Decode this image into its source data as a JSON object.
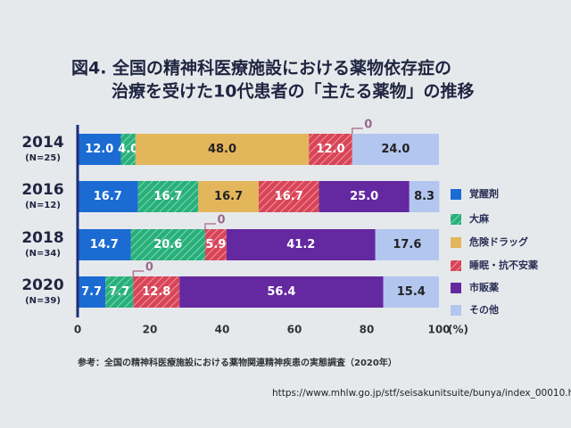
{
  "chart_data": {
    "type": "stacked-barh",
    "title": [
      "図4. 全国の精神科医療施設における薬物依存症の",
      "治療を受けた10代患者の「主たる薬物」の推移"
    ],
    "categories": [
      "2014",
      "2016",
      "2018",
      "2020"
    ],
    "category_notes": [
      "(N=25)",
      "(N=12)",
      "(N=34)",
      "(N=39)"
    ],
    "series": [
      {
        "name": "覚醒剤",
        "color": "#1b6bd3",
        "hatched": false,
        "values": [
          12.0,
          16.7,
          14.7,
          7.7
        ],
        "value_labels": [
          "12.0",
          "16.7",
          "14.7",
          "7.7"
        ]
      },
      {
        "name": "大麻",
        "color": "#27b07a",
        "hatched": true,
        "values": [
          4.0,
          16.7,
          20.6,
          7.7
        ],
        "value_labels": [
          "4.0",
          "16.7",
          "20.6",
          "7.7"
        ]
      },
      {
        "name": "危険ドラッグ",
        "color": "#e4b65c",
        "hatched": false,
        "values": [
          48.0,
          16.7,
          0,
          0
        ],
        "value_labels": [
          "48.0",
          "16.7",
          "0",
          "0"
        ]
      },
      {
        "name": "睡眠・抗不安薬",
        "color": "#d94457",
        "hatched": true,
        "values": [
          12.0,
          16.7,
          5.9,
          12.8
        ],
        "value_labels": [
          "12.0",
          "16.7",
          "5.9",
          "12.8"
        ]
      },
      {
        "name": "市販薬",
        "color": "#6428a0",
        "hatched": false,
        "values": [
          0,
          25.0,
          41.2,
          56.4
        ],
        "value_labels": [
          "0",
          "25.0",
          "41.2",
          "56.4"
        ]
      },
      {
        "name": "その他",
        "color": "#b3c6f0",
        "hatched": false,
        "values": [
          24.0,
          8.3,
          17.6,
          15.4
        ],
        "value_labels": [
          "24.0",
          "8.3",
          "17.6",
          "15.4"
        ]
      }
    ],
    "xlim": [
      0,
      100
    ],
    "xticks": [
      0,
      20,
      40,
      60,
      80,
      100
    ],
    "x_unit": "(%)",
    "source": "参考：全国の精神科医療施設における薬物関連精神疾患の実態調査（2020年）",
    "url": "https://www.mhlw.go.jp/stf/seisakunitsuite/bunya/index_00010.htm"
  }
}
